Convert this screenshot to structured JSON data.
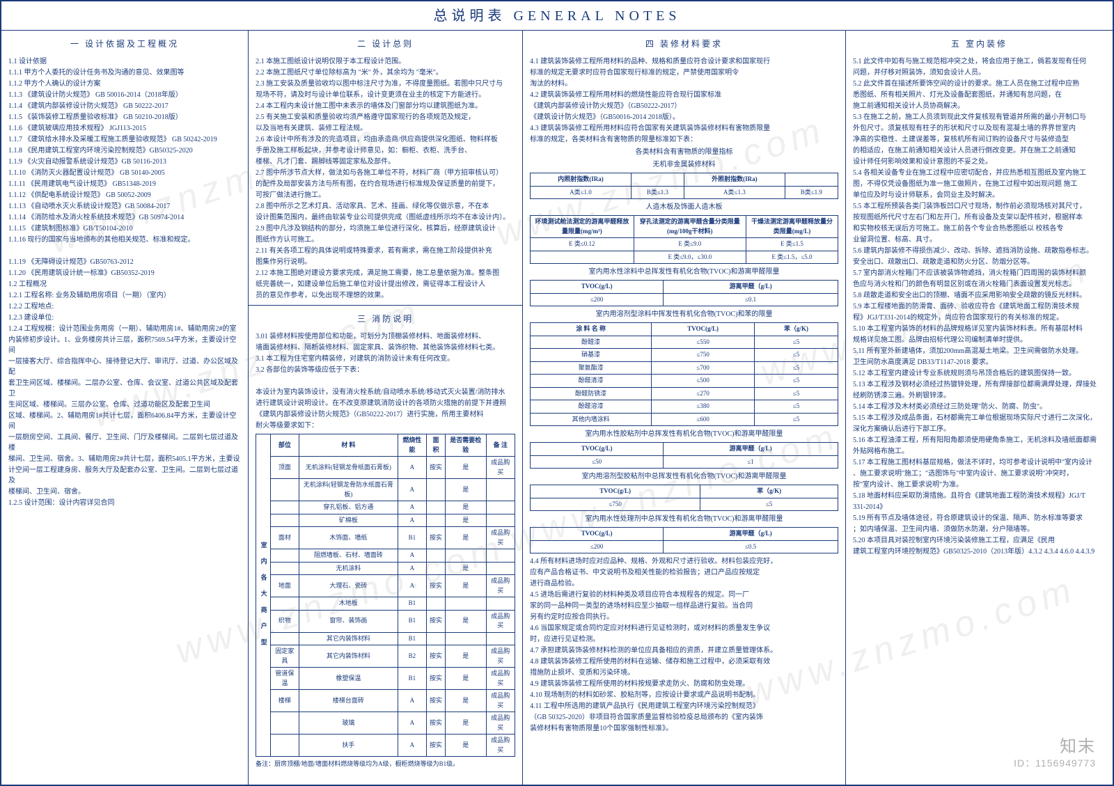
{
  "title": "总说明表 GENERAL NOTES",
  "sections": {
    "s1": {
      "head": "一 设计依据及工程概况",
      "items": [
        "1.1 设计依据",
        "1.1.1 甲方个人委托的设计任务书及沟通的意见、效果图等",
        "1.1.2 甲方个人确认的设计方案",
        "1.1.3 《建筑设计防火规范》 GB 50016-2014（2018年版）",
        "1.1.4 《建筑内部装修设计防火规范》 GB 50222-2017",
        "1.1.5 《装饰装修工程质量验收标准》   GB 50210-2018版）",
        "1.1.6 《建筑玻璃应用技术规程》 JGJ113-2015",
        "1.1.7 《建筑给水排水及采暖工程施工质量验收规范》 GB 50242-2019",
        "1.1.8 《民用建筑工程室内环境污染控制规范》GB50325-2020",
        "1.1.9 《火灾自动报警系统设计规范》GB 50116-2013",
        "1.1.10 《消防灭火器配置设计规范》 GB 50140-2005",
        "1.1.11 《民用建筑电气设计规范》      GB51348-2019",
        "1.1.12 《供配电系统设计规范》       GB 50052-2009",
        "1.1.13 《自动喷水灭火系统设计规范》GB 50084-2017",
        "1.1.14 《消防给水及消火栓系统技术规范》GB 50974-2014",
        "1.1.15 《建筑制图标准》GB/T50104-2010",
        "1.1.16 现行的国家与当地颁布的其他相关规范、标准和规定。",
        "",
        "1.1.19  《无障碍设计规范》GB50763-2012",
        "1.1.20  《民用建筑设计统一标准》GB50352-2019",
        "1.2 工程概况",
        "1.2.1 工程名称: 业务及辅助用房项目（一期）（室内）",
        "1.2.2 工程地点:",
        "1.2.3 建设单位:",
        "1.2.4 工程规模：设计范围业务用房（一期）、辅助用房1#、辅助用房2#的室",
        "内装修初步设计。1、业务楼房共计三层，面积7569.54平方米，主要设计空间",
        "一层接客大厅、综合指挥中心、接待登记大厅、审讯厅、过道、办公区域及配",
        "套卫生间区域、楼梯间。二层办公室、仓库、会议室、过道公共区域及配套卫",
        "生间区域、楼梯间。三层办公室、仓库、过道功能区及配套卫生间",
        "区域、楼梯间。2、辅助用房1#共计七层，面积6406.84平方米，主要设计空间",
        "一层厨房空间、工具间、餐厅、卫生间、门厅及楼梯间。二层到七层过道及楼",
        "梯间、卫生间、宿舍。3、辅助用房2#共计七层，面积5405.1平方米，主要设",
        "计空间一层工程建身房、服务大厅及配套办公室、卫生间。二层到七层过道及",
        "楼梯间、卫生间、宿舍。",
        "1.2.5 设计范围：设计内容详见合同"
      ]
    },
    "s2": {
      "head": "二 设计总则",
      "items": [
        "2.1 本施工图纸设计说明仅限于本工程设计范围。",
        "2.2 本施工图纸尺寸单位除标高为 \"米\" 外，其余均为 \"毫米\"。",
        "2.3 施工安装及质量验收均以图中标注尺寸为准，不得度量图纸。若图中只尺寸与",
        "     现场不符，请及时与设计单位联系，设计变更须在业主的核定下方能进行。",
        "2.4 本工程内未设计施工图中未表示的墙体及门窗部分均以建筑图纸为准。",
        "2.5 有关施工安装和质量验收均须严格遵守国家现行的各项规范及规定，",
        "     以及当地有关建筑、装修工程法规。",
        "2.6 本设计中所有涉及的完造项目，均由承造商/供应商提供深化图纸、物料样板",
        "     手册及施工样板起块，并参考设计师意见，如：橱柜、衣柜、洗手台、",
        "     楼梯、凡才门套、踢脚线等固定家私及部件。",
        "2.7 图中所涉节点大样，做法如与各施工单位不符，材料厂商（甲方招审核认可）",
        "     的配件及局部安装方法与所有图，在约合现场进行标准规及保证质量的前提下，",
        "     可按厂做法进行施工。",
        "2.8 图中所示之艺术灯具、活动家具、艺术、挂画、绿化等仅做示意，不在本",
        "     设计图集范围内，最终由软装专业公司提供完成（图纸虚线所示均不在本设计内）。",
        "2.9 图中凡涉及钢结构的部分，均须施工单位进行深化，核算后，经原建筑设计",
        "     图纸作方认可施工。",
        "2.11 有关各项工程的具体说明或特殊要求，若有需求，需在施工阶段提供补充",
        "     图集作另行说明。",
        "2.12 本施工图绝对建设方要求完成，满足施工需要，施工总量依据为准。整条图",
        "     纸完善统一，如建设单位后施工单位对设计提出修改，需征得本工程设计人",
        "     员的意见作参考，以免出现不理想的效果。"
      ]
    },
    "s3": {
      "head": "三 消防说明",
      "items": [
        "3.01 装修材料按使用部位和功能，可划分为顶棚装修材料、地面装修材料、",
        "     墙面装修材料、隔断装修材料、固定家具、装饰织物、其他装饰装修材料七类。",
        "3.1 本工程为住宅室内精装修，对建筑的消防设计未有任何改变。",
        "3.2 各部位的装饰等级应低于下表：",
        "",
        "本设计为室内装饰设计，没有消火栓系统/自动喷水系统/移动式灭火装置/消防排水",
        "进行建筑设计说明设计。在不改变原建筑消防设计的各项防火措施的前提下并遵照",
        "《建筑内部装修设计防火规范》（GB50222-2017）进行实施，所用主要材料",
        "耐火等级要求如下："
      ],
      "matTable": {
        "cols": [
          "部位",
          "材 料",
          "燃烧性能",
          "面 积",
          "是否需要检验",
          "备 注"
        ],
        "rows": [
          [
            "顶面",
            "无机涂料(轻钢龙骨纸面石膏板)",
            "A",
            "按实",
            "是",
            "成品购买"
          ],
          [
            "",
            "无机涂料(轻钢龙骨防水纸面石膏板)",
            "A",
            "",
            "是",
            ""
          ],
          [
            "",
            "穿孔铝板、铝方通",
            "A",
            "",
            "是",
            ""
          ],
          [
            "",
            "矿棉板",
            "A",
            "",
            "是",
            ""
          ],
          [
            "面材",
            "木饰面、墙纸",
            "B1",
            "按实",
            "是",
            "成品购买"
          ],
          [
            "",
            "阻燃墙板、石材、墙面砖",
            "A",
            "",
            "",
            ""
          ],
          [
            "",
            "无机涂料",
            "A",
            "",
            "是",
            ""
          ],
          [
            "地面",
            "大理石、瓷砖",
            "A",
            "按实",
            "是",
            "成品购买"
          ],
          [
            "",
            "木地板",
            "B1",
            "",
            "",
            ""
          ],
          [
            "织物",
            "窗帘、装饰画",
            "B1",
            "按实",
            "是",
            "成品购买"
          ],
          [
            "",
            "其它内装饰材料",
            "B1",
            "",
            "",
            ""
          ],
          [
            "固定家具",
            "其它内装饰材料",
            "B2",
            "按实",
            "是",
            "成品购买"
          ],
          [
            "管道保温",
            "橡塑保温",
            "B1",
            "按实",
            "是",
            "成品购买"
          ],
          [
            "楼梯",
            "楼梯台面砖",
            "A",
            "按实",
            "是",
            "成品购买"
          ],
          [
            "",
            "玻璃",
            "A",
            "按实",
            "是",
            "成品购买"
          ],
          [
            "",
            "扶手",
            "A",
            "按实",
            "是",
            "成品购买"
          ]
        ],
        "sideLabel": "室 内 各 大 商 户 型",
        "note": "备注：厨房顶棚/地面/墙面材料燃烧等级均为A级，橱柜燃烧等级为B1级。"
      }
    },
    "s4": {
      "head": "四 装修材料要求",
      "items": [
        "4.1 建筑装饰装修工程所用材料的品种、规格和质量应符合设计要求和国家现行",
        "    标准的规定无要求时应符合国家现行标准的规定，严禁使用国家明令",
        "    淘汰的材料。",
        "4.2 建筑装饰装修工程所用材料的燃烧性能应符合现行国家标准",
        "    《建筑内部装修设计防火规范》（GB50222-2017）",
        "    《建筑设计防火规范》（GB50016-2014  2018版）。",
        "4.3 建筑装饰装修工程所用材料应符合国家有关建筑装饰装修材料有害物质限量",
        "    标准的规定，各类材料含有害物质的限量标准如下表："
      ],
      "limitTables": {
        "t_title0": "各类材料含有害物质的限量指标",
        "t1_title": "无机非金属装修材料",
        "t1_cols": [
          "内照射指数(IRa)",
          "",
          "外照射指数(IRa)",
          ""
        ],
        "t1_rows": [
          [
            "A类≤1.0",
            "B类≤1.3",
            "A类≤1.3",
            "B类≤1.9"
          ]
        ],
        "t_sub0": "人造木板及饰面人造木板",
        "t2_cols": [
          "环境测试舱法测定的游离甲醛释放量限量(mg/m³)",
          "穿孔法测定的游离甲醛含量分类限量(mg/100g干材料)",
          "干燥法测定游离甲醛释放量分类限量(mg/L)"
        ],
        "t2_rows": [
          [
            "E 类≤0.12",
            "E 类≤9.0",
            "E 类≤1.5"
          ],
          [
            "",
            "E 类≤9.0，≤30.0",
            "E 类≤1.5，≤5.0"
          ]
        ],
        "t3_title": "室内用水性涂料中总挥发性有机化合物(TVOC)和游离甲醛限量",
        "t3_cols": [
          "TVOC(g/L)",
          "游离甲醛（g/L)"
        ],
        "t3_rows": [
          [
            "≤200",
            "≤0.1"
          ]
        ],
        "t4_title": "室内用溶剂型涂料中挥发性有机化合物(TVOC)和苯的限量",
        "t4_cols": [
          "涂 料 名 称",
          "TVOC(g/L)",
          "苯（g/K)"
        ],
        "t4_rows": [
          [
            "酚醛漆",
            "≤550",
            "≤5"
          ],
          [
            "硝基漆",
            "≤750",
            "≤5"
          ],
          [
            "聚氨酯漆",
            "≤700",
            "≤5"
          ],
          [
            "酚醛清漆",
            "≤500",
            "≤5"
          ],
          [
            "酚醛防锈漆",
            "≤270",
            "≤5"
          ],
          [
            "酚醛溶漆",
            "≤380",
            "≤5"
          ],
          [
            "其他内墙涂料",
            "≤600",
            "≤5"
          ]
        ],
        "t5_title": "室内用水性胶粘剂中总挥发性有机化合物(TVOC)和游离甲醛限量",
        "t5_cols": [
          "TVOC(g/L)",
          "游离甲醛（g/L)"
        ],
        "t5_rows": [
          [
            "≤50",
            "≤1"
          ]
        ],
        "t6_title": "室内用溶剂型胶粘剂中总挥发性有机化合物(TVOC)和游离甲醛限量",
        "t6_cols": [
          "TVOC(g/L)",
          "苯（g/K)"
        ],
        "t6_rows": [
          [
            "≤750",
            "≤5"
          ]
        ],
        "t7_title": "室内用水性处理剂中总挥发性有机化合物(TVOC)和游离甲醛限量",
        "t7_cols": [
          "TVOC(g/L)",
          "游离甲醛（g/L)"
        ],
        "t7_rows": [
          [
            "≤200",
            "≤0.5"
          ]
        ]
      },
      "tail": [
        "4.4 所有材料进场时应对应品种、规格、外观和尺寸进行验收。材料包装应完好，",
        "    应有产品合格证书、中文说明书及相关性能的检验报告；进口产品应按规定",
        "    进行商品检验。",
        "4.5 进场后需进行复验的材料种类及项目应符合本规程各的规定。同一厂",
        "    家的同一品种同一类型的进场材料应至少抽取一组样品进行复验。当合同",
        "    另有约定时应按合同执行。",
        "4.6 当国家规定或合同约定应对材料进行见证检测时，或对材料的质量发生争议",
        "    时，应进行见证检测。",
        "4.7 承担建筑装饰装修材料检测的单位应具备相应的资质，并建立质量管理体系。",
        "4.8 建筑装饰装修工程所使用的材料在运输、储存和施工过程中，必须采取有效",
        "    措施防止损坏、变质和污染环境。",
        "4.9 建筑装饰装修工程所使用的材料按规要求走防火、防腐和防虫处理。",
        "4.10 现场制剂的材料如砂浆、胶粘剂等，应按设计要求或产品说明书配制。",
        "4.11 工程中所选用的建筑产品执行《民用建筑工程室内环境污染控制规范》",
        "    （GB 50325-2020）非项目符合国家质量监督检验检疫总局颁布的《室内装饰",
        "    装修材料有害物质限量10个国家强制性标准》。"
      ]
    },
    "s5": {
      "head": "五 室内装修",
      "items": [
        "5.1 此文件中如有与施工规范相冲突之处，将会应用于施工，倘若发现有任何",
        "    问题，并仔移对照装饰，须知会设计人员。",
        "5.2 此文件首在描述所要饰空间的设计的要求。施工人员在施工过程中应熟",
        "    悉图纸、所有相关照片、灯光及设备配套图纸，并通知有怠问题，在",
        "    施工前通知相关设计人员协商解决。",
        "5.3 在施工之前，施工人员须到现此文件复核现有管道并所需的最小开制口与",
        "    外包尺寸。须复核现有柱子的形状和尺寸以及现有混凝土墙的界界世室内",
        "    净高的实稳性、土建误差等，复核机所有间订购的设备尺寸与装修造型",
        "    的相适应，在施工前通知相关设计人员进行倒改变更。并在施工之前通知",
        "    设计师任何影响效果和设计意图的不妥之处。",
        "5.4 各相关设备专业在施工过程中应密切配合，并应热悉相互图纸及室内施工",
        "    图，不得仅凭设备图纸为准一施工做照片，在施工过程中如出现问题 施工",
        "    单位应及时与设计师联系，会同业主及时解决。",
        "5.5 本工程所预装各类门装饰板凹口尺寸现场，制作前必须现场核对其尺寸，",
        "    按现图纸所代尺寸左右门和左开门，所有设备及支架以配件核对，根据样本",
        "    和实物校核无误后方可施工。施工前各个专业合热悉图纸以 校核各专",
        "    业留洞位置、标高、具寸。",
        "5.6 建筑内部装修不得损伤减少、改动、拆除、遮挡消防设施、疏散指卷标志。",
        "    安全出口、疏散出口、疏散走道和防火分区、防烟分区等。",
        "5.7 室内部消火栓箱门不应该被装饰物遮挡，消火栓箱门四周围的装饰材料颜",
        "    色应与消火栓和门的颜色有明显区别或在消火栓箱门表面设置发光标志。",
        "5.8 疏散走道和安全出口的顶棚、墙面不应采用影响安全疏散的镜反光材料。",
        "5.9 本工程楼地面的防滑膏、面砖、验收应符合《建筑地面工程防滑技术规",
        "    程》JGJ/T331-2014的规定外，尚应符合国家现行的有关标准的规定。",
        "5.10 本工程室内装饰的材料的品牌规格详见室内装饰材料表。所有基层材料",
        "    规格详见施工图。品牌由招标代理公司编制清单时提供。",
        "5.11 所有室外新建墙体，须加200mm高混凝土地梁。卫生间需做防水处理。",
        "    卫生间防水高度满足 DB33/T1147-2018 要求。",
        "5.12 本工程室内建设计专业系统规则须与吊顶合格后的建筑图保持一致。",
        "5.13 本工程涉及钢材必须经过热镀锌处理，所有焊接部位都需满焊处理，焊接处",
        "    经刷防锈漆三遍。外刷银锌漆。",
        "5.14 本工程涉及木材类必须经过三防处理\"防火、防腐、防虫\"。",
        "5.15 本工程涉及成品条面，石材都需完工单位根据现场实际尺寸进行二次深化，",
        "     深化方案确认后进行下部工序。",
        "5.16 本工程油漆工程，所有阳阳角都须使用硬角条施工，无机涂料及墙纸面都需",
        "     外贴网格布施工。",
        "5.17 本工程施工图材料基层规格，做法不详时，均可参考设计说明中\"室内设计",
        "     、施工要求说明\"施工；\"选图饰与\"中室内设计、施工要求说明\"冲突时，",
        "     按\"室内设计、施工要求说明\"为准。",
        "5.18 地面材料应采取防滑措施。且符合《建筑地面工程防滑技术规程》JGJ/T",
        "     331-2014》",
        "5.19 所有节点及墙体途径，符合原建筑设计的保温、隔声、防水标准等要求",
        "     ；如内墙保温、卫生间内墙、须做防水防潮，分户隔墙等。",
        "5.20 本项目具对装控制室内环境污染装修施工工程，应满足《民用",
        "建筑工程室内环境控制规范》GB50325-2010（2013年版）4.3.2 4.3.4 4.6.0 4.4.3.9"
      ]
    }
  },
  "watermark": "www.znzmo.com",
  "corner": {
    "brand": "知末",
    "id": "ID：1156949773"
  },
  "colors": {
    "ink": "#1a3a7a",
    "bg": "#ffffff"
  }
}
